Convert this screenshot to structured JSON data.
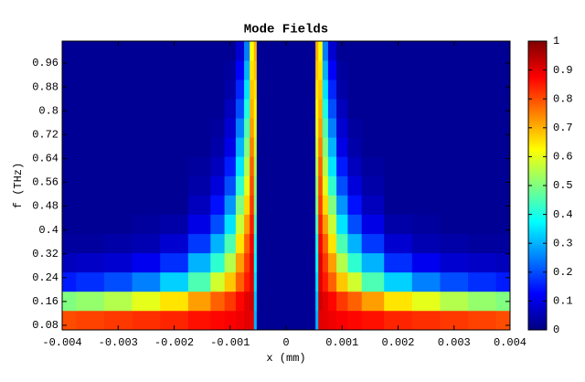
{
  "chart_data": {
    "type": "heatmap",
    "title": "Mode Fields",
    "x_label": "x (mm)",
    "y_label": "f (THz)",
    "colormap": "jet",
    "x": [
      -0.004,
      -0.0035,
      -0.003,
      -0.0025,
      -0.002,
      -0.0015,
      -0.0012,
      -0.001,
      -0.0008,
      -0.0007,
      -0.0006,
      -0.00055,
      -0.0005,
      -0.0004,
      0,
      0.0004,
      0.0005,
      0.00055,
      0.0006,
      0.0007,
      0.0008,
      0.001,
      0.0012,
      0.0015,
      0.002,
      0.0025,
      0.003,
      0.0035,
      0.004
    ],
    "y": [
      0.097,
      0.162,
      0.226,
      0.291,
      0.355,
      0.42,
      0.485,
      0.549,
      0.614,
      0.679,
      0.743,
      0.808,
      0.872,
      0.937,
      1.001
    ],
    "values": [
      [
        0.8,
        0.81,
        0.82,
        0.83,
        0.84,
        0.86,
        0.87,
        0.88,
        0.89,
        0.9,
        0.9,
        0.3,
        0.02,
        0.02,
        0.02,
        0.02,
        0.02,
        0.3,
        0.9,
        0.9,
        0.89,
        0.88,
        0.87,
        0.86,
        0.84,
        0.83,
        0.82,
        0.81,
        0.8
      ],
      [
        0.5,
        0.52,
        0.55,
        0.6,
        0.65,
        0.72,
        0.78,
        0.82,
        0.87,
        0.9,
        0.92,
        0.32,
        0.02,
        0.02,
        0.02,
        0.02,
        0.02,
        0.32,
        0.92,
        0.9,
        0.87,
        0.82,
        0.78,
        0.72,
        0.65,
        0.6,
        0.55,
        0.52,
        0.5
      ],
      [
        0.15,
        0.17,
        0.2,
        0.25,
        0.33,
        0.45,
        0.58,
        0.68,
        0.78,
        0.85,
        0.9,
        0.35,
        0.02,
        0.02,
        0.02,
        0.02,
        0.02,
        0.35,
        0.9,
        0.85,
        0.78,
        0.68,
        0.58,
        0.45,
        0.33,
        0.25,
        0.2,
        0.17,
        0.15
      ],
      [
        0.06,
        0.07,
        0.08,
        0.11,
        0.17,
        0.3,
        0.42,
        0.55,
        0.72,
        0.82,
        0.9,
        0.38,
        0.02,
        0.02,
        0.02,
        0.02,
        0.02,
        0.38,
        0.9,
        0.82,
        0.72,
        0.55,
        0.42,
        0.3,
        0.17,
        0.11,
        0.08,
        0.07,
        0.06
      ],
      [
        0.03,
        0.03,
        0.04,
        0.05,
        0.08,
        0.18,
        0.3,
        0.45,
        0.65,
        0.78,
        0.88,
        0.4,
        0.02,
        0.02,
        0.02,
        0.02,
        0.02,
        0.4,
        0.88,
        0.78,
        0.65,
        0.45,
        0.3,
        0.18,
        0.08,
        0.05,
        0.04,
        0.03,
        0.03
      ],
      [
        0.02,
        0.02,
        0.02,
        0.03,
        0.04,
        0.1,
        0.2,
        0.35,
        0.57,
        0.72,
        0.85,
        0.45,
        0.02,
        0.02,
        0.02,
        0.02,
        0.02,
        0.45,
        0.85,
        0.72,
        0.57,
        0.35,
        0.2,
        0.1,
        0.04,
        0.03,
        0.02,
        0.02,
        0.02
      ],
      [
        0.02,
        0.02,
        0.02,
        0.02,
        0.02,
        0.06,
        0.14,
        0.27,
        0.5,
        0.66,
        0.82,
        0.5,
        0.02,
        0.02,
        0.02,
        0.02,
        0.02,
        0.5,
        0.82,
        0.66,
        0.5,
        0.27,
        0.14,
        0.06,
        0.02,
        0.02,
        0.02,
        0.02,
        0.02
      ],
      [
        0.02,
        0.02,
        0.02,
        0.02,
        0.02,
        0.04,
        0.09,
        0.2,
        0.42,
        0.6,
        0.8,
        0.52,
        0.02,
        0.02,
        0.02,
        0.02,
        0.02,
        0.52,
        0.8,
        0.6,
        0.42,
        0.2,
        0.09,
        0.04,
        0.02,
        0.02,
        0.02,
        0.02,
        0.02
      ],
      [
        0.02,
        0.02,
        0.02,
        0.02,
        0.02,
        0.03,
        0.06,
        0.15,
        0.35,
        0.55,
        0.78,
        0.55,
        0.02,
        0.02,
        0.02,
        0.02,
        0.02,
        0.55,
        0.78,
        0.55,
        0.35,
        0.15,
        0.06,
        0.03,
        0.02,
        0.02,
        0.02,
        0.02,
        0.02
      ],
      [
        0.02,
        0.02,
        0.02,
        0.02,
        0.02,
        0.02,
        0.04,
        0.1,
        0.3,
        0.5,
        0.75,
        0.58,
        0.02,
        0.02,
        0.02,
        0.02,
        0.02,
        0.58,
        0.75,
        0.5,
        0.3,
        0.1,
        0.04,
        0.02,
        0.02,
        0.02,
        0.02,
        0.02,
        0.02
      ],
      [
        0.02,
        0.02,
        0.02,
        0.02,
        0.02,
        0.02,
        0.03,
        0.08,
        0.25,
        0.45,
        0.72,
        0.6,
        0.02,
        0.02,
        0.02,
        0.02,
        0.02,
        0.6,
        0.72,
        0.45,
        0.25,
        0.08,
        0.03,
        0.02,
        0.02,
        0.02,
        0.02,
        0.02,
        0.02
      ],
      [
        0.02,
        0.02,
        0.02,
        0.02,
        0.02,
        0.02,
        0.02,
        0.06,
        0.2,
        0.4,
        0.7,
        0.63,
        0.02,
        0.02,
        0.02,
        0.02,
        0.02,
        0.63,
        0.7,
        0.4,
        0.2,
        0.06,
        0.02,
        0.02,
        0.02,
        0.02,
        0.02,
        0.02,
        0.02
      ],
      [
        0.02,
        0.02,
        0.02,
        0.02,
        0.02,
        0.02,
        0.02,
        0.04,
        0.16,
        0.35,
        0.68,
        0.65,
        0.02,
        0.02,
        0.02,
        0.02,
        0.02,
        0.65,
        0.68,
        0.35,
        0.16,
        0.04,
        0.02,
        0.02,
        0.02,
        0.02,
        0.02,
        0.02,
        0.02
      ],
      [
        0.02,
        0.02,
        0.02,
        0.02,
        0.02,
        0.02,
        0.02,
        0.03,
        0.12,
        0.3,
        0.65,
        0.68,
        0.02,
        0.02,
        0.02,
        0.02,
        0.02,
        0.68,
        0.65,
        0.3,
        0.12,
        0.03,
        0.02,
        0.02,
        0.02,
        0.02,
        0.02,
        0.02,
        0.02
      ],
      [
        0.02,
        0.02,
        0.02,
        0.02,
        0.02,
        0.02,
        0.02,
        0.02,
        0.08,
        0.25,
        0.62,
        0.7,
        0.02,
        0.02,
        0.02,
        0.02,
        0.02,
        0.7,
        0.62,
        0.25,
        0.08,
        0.02,
        0.02,
        0.02,
        0.02,
        0.02,
        0.02,
        0.02,
        0.02
      ]
    ],
    "xlim": [
      -0.004,
      0.004
    ],
    "xticks": [
      -0.004,
      -0.003,
      -0.002,
      -0.001,
      0,
      0.001,
      0.002,
      0.003,
      0.004
    ],
    "ylim": [
      0.0646,
      1.0336
    ],
    "yticks": [
      0.08,
      0.16,
      0.24,
      0.32,
      0.4,
      0.48,
      0.56,
      0.64,
      0.72,
      0.8,
      0.88,
      0.96
    ],
    "clim": [
      0,
      1
    ],
    "cticks": [
      0,
      0.1,
      0.2,
      0.3,
      0.4,
      0.5,
      0.6,
      0.7,
      0.8,
      0.9,
      1
    ]
  }
}
